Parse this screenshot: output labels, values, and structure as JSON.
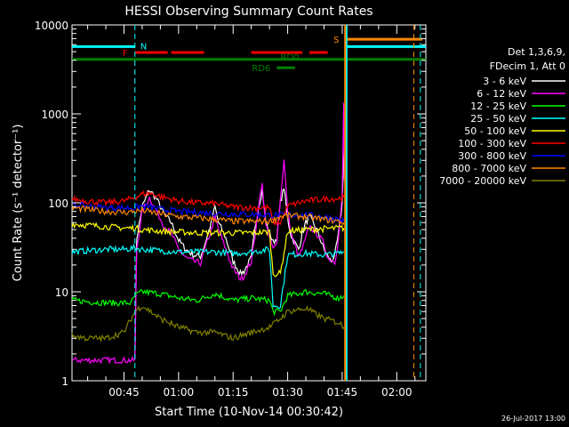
{
  "chart_data": {
    "type": "line",
    "title": "HESSI Observing Summary Count Rates",
    "xlabel": "Start Time (10-Nov-14 00:30:42)",
    "ylabel": "Count Rate (s⁻¹ detector⁻¹)",
    "yscale": "log",
    "ylim": [
      1,
      10000
    ],
    "xlim_minutes": [
      30.7,
      128.0
    ],
    "x_ticks": [
      {
        "label": "00:45",
        "minute": 45
      },
      {
        "label": "01:00",
        "minute": 60
      },
      {
        "label": "01:15",
        "minute": 75
      },
      {
        "label": "01:30",
        "minute": 90
      },
      {
        "label": "01:45",
        "minute": 105
      },
      {
        "label": "02:00",
        "minute": 120
      }
    ],
    "y_ticks": [
      {
        "label": "1",
        "value": 1
      },
      {
        "label": "10",
        "value": 10
      },
      {
        "label": "100",
        "value": 100
      },
      {
        "label": "1000",
        "value": 1000
      },
      {
        "label": "10000",
        "value": 10000
      }
    ],
    "legend_header": [
      "Det 1,3,6,9,",
      "FDecim 1, Att 0"
    ],
    "legend_position": "right",
    "series": [
      {
        "name": "3 - 6 keV",
        "color": "#ffffff",
        "points": [
          [
            48,
            2
          ],
          [
            48.5,
            40
          ],
          [
            50,
            90
          ],
          [
            52,
            140
          ],
          [
            54,
            110
          ],
          [
            56,
            75
          ],
          [
            58,
            60
          ],
          [
            60,
            38
          ],
          [
            62,
            30
          ],
          [
            64,
            26
          ],
          [
            66,
            25
          ],
          [
            67,
            32
          ],
          [
            69,
            60
          ],
          [
            70,
            90
          ],
          [
            71,
            60
          ],
          [
            73,
            40
          ],
          [
            75,
            22
          ],
          [
            77,
            16
          ],
          [
            78,
            17
          ],
          [
            80,
            24
          ],
          [
            81,
            50
          ],
          [
            82,
            90
          ],
          [
            83,
            140
          ],
          [
            84,
            60
          ],
          [
            86,
            36
          ],
          [
            87,
            40
          ],
          [
            88,
            100
          ],
          [
            89,
            150
          ],
          [
            90,
            65
          ],
          [
            91,
            42
          ],
          [
            93,
            30
          ],
          [
            94,
            45
          ],
          [
            95,
            60
          ],
          [
            96,
            70
          ],
          [
            98,
            50
          ],
          [
            100,
            30
          ],
          [
            101,
            25
          ],
          [
            102,
            22
          ],
          [
            103,
            26
          ],
          [
            104,
            45
          ],
          [
            105,
            100
          ],
          [
            105.6,
            550
          ]
        ]
      },
      {
        "name": "6 - 12 keV",
        "color": "#ff00ff",
        "points": [
          [
            30.7,
            1.7
          ],
          [
            40,
            1.7
          ],
          [
            48,
            1.7
          ],
          [
            48.5,
            30
          ],
          [
            50,
            80
          ],
          [
            52,
            115
          ],
          [
            54,
            80
          ],
          [
            56,
            55
          ],
          [
            58,
            45
          ],
          [
            60,
            30
          ],
          [
            62,
            24
          ],
          [
            64,
            22
          ],
          [
            66,
            21
          ],
          [
            67,
            28
          ],
          [
            69,
            50
          ],
          [
            70,
            70
          ],
          [
            71,
            50
          ],
          [
            73,
            30
          ],
          [
            75,
            18
          ],
          [
            77,
            14
          ],
          [
            78,
            15
          ],
          [
            80,
            22
          ],
          [
            81,
            42
          ],
          [
            82,
            95
          ],
          [
            83,
            160
          ],
          [
            84,
            55
          ],
          [
            86,
            30
          ],
          [
            87,
            38
          ],
          [
            88,
            110
          ],
          [
            89,
            300
          ],
          [
            90,
            80
          ],
          [
            91,
            45
          ],
          [
            93,
            25
          ],
          [
            94,
            30
          ],
          [
            95,
            40
          ],
          [
            96,
            55
          ],
          [
            98,
            45
          ],
          [
            100,
            35
          ],
          [
            101,
            24
          ],
          [
            103,
            22
          ],
          [
            104,
            40
          ],
          [
            105,
            120
          ],
          [
            105.4,
            1300
          ],
          [
            105.6,
            180
          ]
        ]
      },
      {
        "name": "12 - 25 keV",
        "color": "#00ff00",
        "points": [
          [
            30.7,
            8
          ],
          [
            40,
            7.5
          ],
          [
            47,
            7.5
          ],
          [
            48,
            9
          ],
          [
            50,
            10
          ],
          [
            55,
            9.5
          ],
          [
            60,
            8.5
          ],
          [
            65,
            8
          ],
          [
            70,
            9.5
          ],
          [
            75,
            8
          ],
          [
            80,
            8.5
          ],
          [
            85,
            8
          ],
          [
            86,
            6
          ],
          [
            88,
            6
          ],
          [
            90,
            9
          ],
          [
            95,
            10
          ],
          [
            100,
            9.5
          ],
          [
            104,
            8.5
          ],
          [
            105.5,
            9
          ]
        ]
      },
      {
        "name": "25 - 50 keV",
        "color": "#00ffff",
        "points": [
          [
            30.7,
            28
          ],
          [
            35,
            29
          ],
          [
            40,
            30
          ],
          [
            45,
            30
          ],
          [
            48,
            31
          ],
          [
            50,
            30
          ],
          [
            55,
            29
          ],
          [
            60,
            28
          ],
          [
            65,
            28
          ],
          [
            70,
            28
          ],
          [
            75,
            27
          ],
          [
            80,
            28
          ],
          [
            85,
            30
          ],
          [
            86,
            7
          ],
          [
            88,
            7
          ],
          [
            90,
            26
          ],
          [
            95,
            27
          ],
          [
            100,
            26
          ],
          [
            104,
            27
          ],
          [
            105.5,
            28
          ]
        ]
      },
      {
        "name": "50 - 100 keV",
        "color": "#ffff00",
        "points": [
          [
            30.7,
            58
          ],
          [
            35,
            56
          ],
          [
            40,
            54
          ],
          [
            45,
            52
          ],
          [
            48,
            52
          ],
          [
            50,
            50
          ],
          [
            55,
            48
          ],
          [
            60,
            47
          ],
          [
            65,
            46
          ],
          [
            70,
            46
          ],
          [
            75,
            46
          ],
          [
            80,
            46
          ],
          [
            85,
            47
          ],
          [
            86,
            16
          ],
          [
            88,
            16
          ],
          [
            90,
            48
          ],
          [
            95,
            50
          ],
          [
            100,
            51
          ],
          [
            104,
            52
          ],
          [
            105.5,
            52
          ]
        ]
      },
      {
        "name": "100 - 300 keV",
        "color": "#ff0000",
        "points": [
          [
            30.7,
            110
          ],
          [
            35,
            105
          ],
          [
            40,
            100
          ],
          [
            45,
            105
          ],
          [
            48,
            115
          ],
          [
            50,
            125
          ],
          [
            52,
            128
          ],
          [
            55,
            118
          ],
          [
            60,
            105
          ],
          [
            65,
            100
          ],
          [
            70,
            98
          ],
          [
            75,
            90
          ],
          [
            80,
            88
          ],
          [
            85,
            88
          ],
          [
            86,
            60
          ],
          [
            88,
            60
          ],
          [
            90,
            92
          ],
          [
            95,
            105
          ],
          [
            100,
            110
          ],
          [
            104,
            112
          ],
          [
            105.5,
            115
          ]
        ]
      },
      {
        "name": "300 - 800 keV",
        "color": "#0000ff",
        "points": [
          [
            30.7,
            95
          ],
          [
            35,
            92
          ],
          [
            40,
            88
          ],
          [
            45,
            88
          ],
          [
            48,
            88
          ],
          [
            50,
            92
          ],
          [
            52,
            90
          ],
          [
            55,
            85
          ],
          [
            60,
            80
          ],
          [
            65,
            78
          ],
          [
            70,
            76
          ],
          [
            75,
            75
          ],
          [
            80,
            74
          ],
          [
            85,
            73
          ],
          [
            88,
            72
          ],
          [
            90,
            72
          ],
          [
            95,
            73
          ],
          [
            100,
            70
          ],
          [
            104,
            65
          ],
          [
            105.5,
            62
          ]
        ]
      },
      {
        "name": "800 - 7000 keV",
        "color": "#ff8800",
        "points": [
          [
            30.7,
            88
          ],
          [
            35,
            84
          ],
          [
            40,
            80
          ],
          [
            45,
            78
          ],
          [
            48,
            80
          ],
          [
            50,
            82
          ],
          [
            55,
            75
          ],
          [
            60,
            70
          ],
          [
            65,
            68
          ],
          [
            70,
            65
          ],
          [
            75,
            62
          ],
          [
            80,
            62
          ],
          [
            85,
            62
          ],
          [
            88,
            70
          ],
          [
            90,
            72
          ],
          [
            95,
            70
          ],
          [
            100,
            65
          ],
          [
            104,
            62
          ],
          [
            105.5,
            60
          ]
        ]
      },
      {
        "name": "7000 - 20000 keV",
        "color": "#808000",
        "points": [
          [
            30.7,
            3.2
          ],
          [
            35,
            3
          ],
          [
            40,
            3
          ],
          [
            45,
            3.5
          ],
          [
            48,
            6
          ],
          [
            50,
            7
          ],
          [
            55,
            5
          ],
          [
            60,
            4
          ],
          [
            65,
            3.5
          ],
          [
            70,
            3.5
          ],
          [
            75,
            3
          ],
          [
            80,
            3.5
          ],
          [
            85,
            4
          ],
          [
            88,
            5
          ],
          [
            90,
            6
          ],
          [
            95,
            6.5
          ],
          [
            100,
            5
          ],
          [
            104,
            4.5
          ],
          [
            105.5,
            4
          ]
        ]
      }
    ],
    "flags": [
      {
        "label": "N",
        "color": "#00ffff",
        "value": 5700,
        "segments": [
          [
            30.7,
            48
          ]
        ]
      },
      {
        "label": "F",
        "color": "#ff0000",
        "value": 4900,
        "segments": [
          [
            48,
            57
          ],
          [
            58,
            67
          ],
          [
            80,
            94
          ],
          [
            96,
            101
          ]
        ]
      },
      {
        "label": "RD0",
        "color": "#008000",
        "value": 4100,
        "segments": [
          [
            30.7,
            128
          ]
        ]
      },
      {
        "label": "RD6",
        "color": "#008000",
        "value": 3300,
        "segments": [
          [
            87,
            92
          ]
        ]
      },
      {
        "label": "S",
        "color": "#ff8800",
        "value": 6900,
        "segments": [
          [
            106,
            127
          ]
        ]
      },
      {
        "label": "",
        "color": "#00ffff",
        "value": 5700,
        "segments": [
          [
            106,
            128
          ]
        ]
      }
    ],
    "markers": [
      {
        "minute": 48,
        "color": "#00ffff",
        "style": "dashed"
      },
      {
        "minute": 106.2,
        "color": "#00ffff",
        "style": "solid"
      },
      {
        "minute": 105.8,
        "color": "#ff8800",
        "style": "solid"
      },
      {
        "minute": 124.7,
        "color": "#ff8800",
        "style": "dashed"
      },
      {
        "minute": 126.5,
        "color": "#00ffff",
        "style": "dashed"
      }
    ],
    "grid": false
  },
  "footer": {
    "date_stamp": "26-Jul-2017 13:00"
  }
}
